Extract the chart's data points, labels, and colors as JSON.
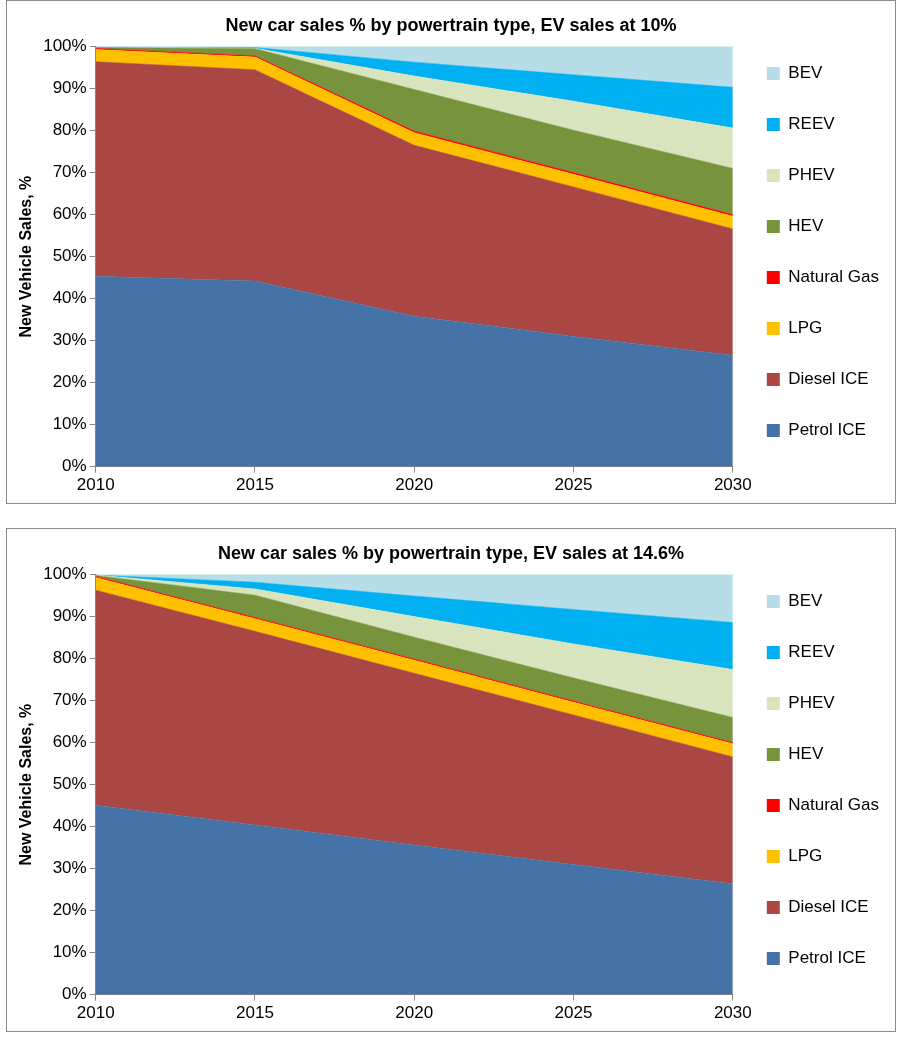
{
  "chart_data": [
    {
      "type": "area",
      "stacked": true,
      "title": "New car sales % by powertrain type, EV sales at 10%",
      "ylabel": "New Vehicle Sales, %",
      "x": [
        2010,
        2015,
        2020,
        2025,
        2030
      ],
      "xlim": [
        2010,
        2030
      ],
      "xticks": [
        2010,
        2015,
        2020,
        2025,
        2030
      ],
      "ylim": [
        0,
        100
      ],
      "yticks": [
        {
          "value": 0,
          "label": "0%"
        },
        {
          "value": 10,
          "label": "10%"
        },
        {
          "value": 20,
          "label": "20%"
        },
        {
          "value": 30,
          "label": "30%"
        },
        {
          "value": 40,
          "label": "40%"
        },
        {
          "value": 50,
          "label": "50%"
        },
        {
          "value": 60,
          "label": "60%"
        },
        {
          "value": 70,
          "label": "70%"
        },
        {
          "value": 80,
          "label": "80%"
        },
        {
          "value": 90,
          "label": "90%"
        },
        {
          "value": 100,
          "label": "100%"
        }
      ],
      "grid": false,
      "legend": "right",
      "marker": "none",
      "series": [
        {
          "name": "Petrol ICE",
          "color": "#4572a7",
          "values": [
            45.3,
            44.2,
            35.8,
            31.0,
            26.5
          ]
        },
        {
          "name": "Diesel ICE",
          "color": "#aa4643",
          "values": [
            51.1,
            50.3,
            40.7,
            35.6,
            30.1
          ]
        },
        {
          "name": "LPG",
          "color": "#ffc000",
          "values": [
            2.9,
            3.0,
            3.0,
            3.0,
            3.0
          ]
        },
        {
          "name": "Natural Gas",
          "color": "#ff0000",
          "values": [
            0.3,
            0.3,
            0.4,
            0.4,
            0.4
          ]
        },
        {
          "name": "HEV",
          "color": "#77933c",
          "values": [
            0.2,
            1.7,
            9.9,
            10.1,
            11.0
          ]
        },
        {
          "name": "PHEV",
          "color": "#d7e4bd",
          "values": [
            0.1,
            0.1,
            3.2,
            6.9,
            9.6
          ]
        },
        {
          "name": "REEV",
          "color": "#00b0f0",
          "values": [
            0.0,
            0.2,
            3.3,
            6.3,
            9.7
          ]
        },
        {
          "name": "BEV",
          "color": "#b7dee8",
          "values": [
            0.1,
            0.2,
            3.7,
            6.7,
            9.7
          ]
        }
      ]
    },
    {
      "type": "area",
      "stacked": true,
      "title": "New car sales % by powertrain type, EV sales at 14.6%",
      "ylabel": "New Vehicle Sales, %",
      "x": [
        2010,
        2015,
        2020,
        2025,
        2030
      ],
      "xlim": [
        2010,
        2030
      ],
      "xticks": [
        2010,
        2015,
        2020,
        2025,
        2030
      ],
      "ylim": [
        0,
        100
      ],
      "yticks": [
        {
          "value": 0,
          "label": "0%"
        },
        {
          "value": 10,
          "label": "10%"
        },
        {
          "value": 20,
          "label": "20%"
        },
        {
          "value": 30,
          "label": "30%"
        },
        {
          "value": 40,
          "label": "40%"
        },
        {
          "value": 50,
          "label": "50%"
        },
        {
          "value": 60,
          "label": "60%"
        },
        {
          "value": 70,
          "label": "70%"
        },
        {
          "value": 80,
          "label": "80%"
        },
        {
          "value": 90,
          "label": "90%"
        },
        {
          "value": 100,
          "label": "100%"
        }
      ],
      "grid": false,
      "legend": "right",
      "marker": "none",
      "series": [
        {
          "name": "Petrol ICE",
          "color": "#4572a7",
          "values": [
            45.1,
            40.4,
            35.6,
            31.0,
            26.4
          ]
        },
        {
          "name": "Diesel ICE",
          "color": "#aa4643",
          "values": [
            51.2,
            46.1,
            40.9,
            35.6,
            30.2
          ]
        },
        {
          "name": "LPG",
          "color": "#ffc000",
          "values": [
            3.0,
            3.0,
            3.1,
            3.0,
            3.1
          ]
        },
        {
          "name": "Natural Gas",
          "color": "#ff0000",
          "values": [
            0.3,
            0.3,
            0.3,
            0.3,
            0.3
          ]
        },
        {
          "name": "HEV",
          "color": "#77933c",
          "values": [
            0.2,
            5.3,
            5.2,
            5.5,
            6.0
          ]
        },
        {
          "name": "PHEV",
          "color": "#d7e4bd",
          "values": [
            0.1,
            1.5,
            4.9,
            8.1,
            11.4
          ]
        },
        {
          "name": "REEV",
          "color": "#00b0f0",
          "values": [
            0.0,
            1.6,
            4.9,
            8.2,
            11.2
          ]
        },
        {
          "name": "BEV",
          "color": "#b7dee8",
          "values": [
            0.1,
            1.8,
            5.1,
            8.3,
            11.4
          ]
        }
      ]
    }
  ]
}
